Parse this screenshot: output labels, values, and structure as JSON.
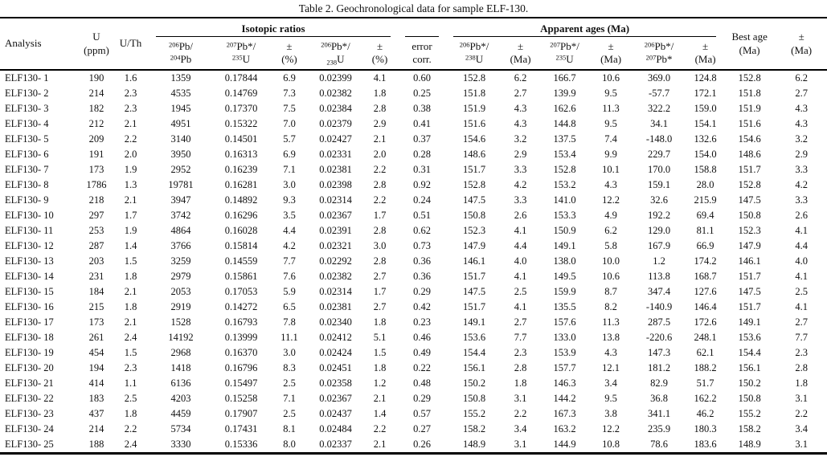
{
  "title": "Table 2. Geochronological data for sample ELF-130.",
  "table": {
    "header": {
      "row1": [
        {
          "id": "col-analysis",
          "label": "Analysis",
          "colspan": 1,
          "rowspan": 2,
          "align": "left"
        },
        {
          "id": "col-u-ppm",
          "label": "U\n(ppm)",
          "colspan": 1,
          "rowspan": 2
        },
        {
          "id": "col-u-th",
          "label": "U/Th",
          "colspan": 1,
          "rowspan": 2
        },
        {
          "id": "group-isotopic-ratios",
          "label": "Isotopic ratios",
          "colspan": 5,
          "rowspan": 1,
          "group": true
        },
        {
          "id": "group-error-corr",
          "label": "",
          "colspan": 1,
          "rowspan": 1,
          "group": true
        },
        {
          "id": "group-apparent-ages",
          "label": "Apparent ages (Ma)",
          "colspan": 6,
          "rowspan": 1,
          "group": true
        },
        {
          "id": "col-best-age",
          "label": "Best age\n(Ma)",
          "colspan": 1,
          "rowspan": 2
        },
        {
          "id": "col-best-age-err",
          "label": "±\n(Ma)",
          "colspan": 1,
          "rowspan": 2
        }
      ],
      "row2": [
        {
          "id": "col-pb206-pb204",
          "label": "{206}Pb/\n{204}Pb"
        },
        {
          "id": "col-pb207-u235-ratio",
          "label": "{207}Pb*/\n{235}U"
        },
        {
          "id": "col-err-pct-1",
          "label": "±\n(%)"
        },
        {
          "id": "col-pb206-u238-ratio",
          "label": "{206}Pb*/\n[238]U"
        },
        {
          "id": "col-err-pct-2",
          "label": "±\n(%)"
        },
        {
          "id": "col-error-corr",
          "label": "error\ncorr."
        },
        {
          "id": "col-age-pb206-u238",
          "label": "{206}Pb*/\n{238}U"
        },
        {
          "id": "col-age-err-1",
          "label": "±\n(Ma)"
        },
        {
          "id": "col-age-pb207-u235",
          "label": "{207}Pb*/\n{235}U"
        },
        {
          "id": "col-age-err-2",
          "label": "±\n(Ma)"
        },
        {
          "id": "col-age-pb206-pb207",
          "label": "{206}Pb*/\n{207}Pb*"
        },
        {
          "id": "col-age-err-3",
          "label": "±\n(Ma)"
        }
      ]
    },
    "rows": [
      [
        "ELF130- 1",
        "190",
        "1.6",
        "1359",
        "0.17844",
        "6.9",
        "0.02399",
        "4.1",
        "0.60",
        "152.8",
        "6.2",
        "166.7",
        "10.6",
        "369.0",
        "124.8",
        "152.8",
        "6.2"
      ],
      [
        "ELF130- 2",
        "214",
        "2.3",
        "4535",
        "0.14769",
        "7.3",
        "0.02382",
        "1.8",
        "0.25",
        "151.8",
        "2.7",
        "139.9",
        "9.5",
        "-57.7",
        "172.1",
        "151.8",
        "2.7"
      ],
      [
        "ELF130- 3",
        "182",
        "2.3",
        "1945",
        "0.17370",
        "7.5",
        "0.02384",
        "2.8",
        "0.38",
        "151.9",
        "4.3",
        "162.6",
        "11.3",
        "322.2",
        "159.0",
        "151.9",
        "4.3"
      ],
      [
        "ELF130- 4",
        "212",
        "2.1",
        "4951",
        "0.15322",
        "7.0",
        "0.02379",
        "2.9",
        "0.41",
        "151.6",
        "4.3",
        "144.8",
        "9.5",
        "34.1",
        "154.1",
        "151.6",
        "4.3"
      ],
      [
        "ELF130- 5",
        "209",
        "2.2",
        "3140",
        "0.14501",
        "5.7",
        "0.02427",
        "2.1",
        "0.37",
        "154.6",
        "3.2",
        "137.5",
        "7.4",
        "-148.0",
        "132.6",
        "154.6",
        "3.2"
      ],
      [
        "ELF130- 6",
        "191",
        "2.0",
        "3950",
        "0.16313",
        "6.9",
        "0.02331",
        "2.0",
        "0.28",
        "148.6",
        "2.9",
        "153.4",
        "9.9",
        "229.7",
        "154.0",
        "148.6",
        "2.9"
      ],
      [
        "ELF130- 7",
        "173",
        "1.9",
        "2952",
        "0.16239",
        "7.1",
        "0.02381",
        "2.2",
        "0.31",
        "151.7",
        "3.3",
        "152.8",
        "10.1",
        "170.0",
        "158.8",
        "151.7",
        "3.3"
      ],
      [
        "ELF130- 8",
        "1786",
        "1.3",
        "19781",
        "0.16281",
        "3.0",
        "0.02398",
        "2.8",
        "0.92",
        "152.8",
        "4.2",
        "153.2",
        "4.3",
        "159.1",
        "28.0",
        "152.8",
        "4.2"
      ],
      [
        "ELF130- 9",
        "218",
        "2.1",
        "3947",
        "0.14892",
        "9.3",
        "0.02314",
        "2.2",
        "0.24",
        "147.5",
        "3.3",
        "141.0",
        "12.2",
        "32.6",
        "215.9",
        "147.5",
        "3.3"
      ],
      [
        "ELF130- 10",
        "297",
        "1.7",
        "3742",
        "0.16296",
        "3.5",
        "0.02367",
        "1.7",
        "0.51",
        "150.8",
        "2.6",
        "153.3",
        "4.9",
        "192.2",
        "69.4",
        "150.8",
        "2.6"
      ],
      [
        "ELF130- 11",
        "253",
        "1.9",
        "4864",
        "0.16028",
        "4.4",
        "0.02391",
        "2.8",
        "0.62",
        "152.3",
        "4.1",
        "150.9",
        "6.2",
        "129.0",
        "81.1",
        "152.3",
        "4.1"
      ],
      [
        "ELF130- 12",
        "287",
        "1.4",
        "3766",
        "0.15814",
        "4.2",
        "0.02321",
        "3.0",
        "0.73",
        "147.9",
        "4.4",
        "149.1",
        "5.8",
        "167.9",
        "66.9",
        "147.9",
        "4.4"
      ],
      [
        "ELF130- 13",
        "203",
        "1.5",
        "3259",
        "0.14559",
        "7.7",
        "0.02292",
        "2.8",
        "0.36",
        "146.1",
        "4.0",
        "138.0",
        "10.0",
        "1.2",
        "174.2",
        "146.1",
        "4.0"
      ],
      [
        "ELF130- 14",
        "231",
        "1.8",
        "2979",
        "0.15861",
        "7.6",
        "0.02382",
        "2.7",
        "0.36",
        "151.7",
        "4.1",
        "149.5",
        "10.6",
        "113.8",
        "168.7",
        "151.7",
        "4.1"
      ],
      [
        "ELF130- 15",
        "184",
        "2.1",
        "2053",
        "0.17053",
        "5.9",
        "0.02314",
        "1.7",
        "0.29",
        "147.5",
        "2.5",
        "159.9",
        "8.7",
        "347.4",
        "127.6",
        "147.5",
        "2.5"
      ],
      [
        "ELF130- 16",
        "215",
        "1.8",
        "2919",
        "0.14272",
        "6.5",
        "0.02381",
        "2.7",
        "0.42",
        "151.7",
        "4.1",
        "135.5",
        "8.2",
        "-140.9",
        "146.4",
        "151.7",
        "4.1"
      ],
      [
        "ELF130- 17",
        "173",
        "2.1",
        "1528",
        "0.16793",
        "7.8",
        "0.02340",
        "1.8",
        "0.23",
        "149.1",
        "2.7",
        "157.6",
        "11.3",
        "287.5",
        "172.6",
        "149.1",
        "2.7"
      ],
      [
        "ELF130- 18",
        "261",
        "2.4",
        "14192",
        "0.13999",
        "11.1",
        "0.02412",
        "5.1",
        "0.46",
        "153.6",
        "7.7",
        "133.0",
        "13.8",
        "-220.6",
        "248.1",
        "153.6",
        "7.7"
      ],
      [
        "ELF130- 19",
        "454",
        "1.5",
        "2968",
        "0.16370",
        "3.0",
        "0.02424",
        "1.5",
        "0.49",
        "154.4",
        "2.3",
        "153.9",
        "4.3",
        "147.3",
        "62.1",
        "154.4",
        "2.3"
      ],
      [
        "ELF130- 20",
        "194",
        "2.3",
        "1418",
        "0.16796",
        "8.3",
        "0.02451",
        "1.8",
        "0.22",
        "156.1",
        "2.8",
        "157.7",
        "12.1",
        "181.2",
        "188.2",
        "156.1",
        "2.8"
      ],
      [
        "ELF130- 21",
        "414",
        "1.1",
        "6136",
        "0.15497",
        "2.5",
        "0.02358",
        "1.2",
        "0.48",
        "150.2",
        "1.8",
        "146.3",
        "3.4",
        "82.9",
        "51.7",
        "150.2",
        "1.8"
      ],
      [
        "ELF130- 22",
        "183",
        "2.5",
        "4203",
        "0.15258",
        "7.1",
        "0.02367",
        "2.1",
        "0.29",
        "150.8",
        "3.1",
        "144.2",
        "9.5",
        "36.8",
        "162.2",
        "150.8",
        "3.1"
      ],
      [
        "ELF130- 23",
        "437",
        "1.8",
        "4459",
        "0.17907",
        "2.5",
        "0.02437",
        "1.4",
        "0.57",
        "155.2",
        "2.2",
        "167.3",
        "3.8",
        "341.1",
        "46.2",
        "155.2",
        "2.2"
      ],
      [
        "ELF130- 24",
        "214",
        "2.2",
        "5734",
        "0.17431",
        "8.1",
        "0.02484",
        "2.2",
        "0.27",
        "158.2",
        "3.4",
        "163.2",
        "12.2",
        "235.9",
        "180.3",
        "158.2",
        "3.4"
      ],
      [
        "ELF130- 25",
        "188",
        "2.4",
        "3330",
        "0.15336",
        "8.0",
        "0.02337",
        "2.1",
        "0.26",
        "148.9",
        "3.1",
        "144.9",
        "10.8",
        "78.6",
        "183.6",
        "148.9",
        "3.1"
      ]
    ]
  }
}
